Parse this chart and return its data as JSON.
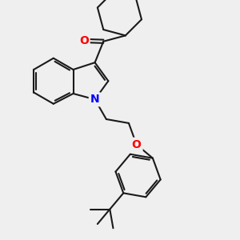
{
  "background_color": "#efefef",
  "bond_color": "#1a1a1a",
  "bond_width": 1.5,
  "atom_colors": {
    "O": "#ff0000",
    "N": "#0000ff"
  },
  "figsize": [
    3.0,
    3.0
  ],
  "dpi": 100
}
